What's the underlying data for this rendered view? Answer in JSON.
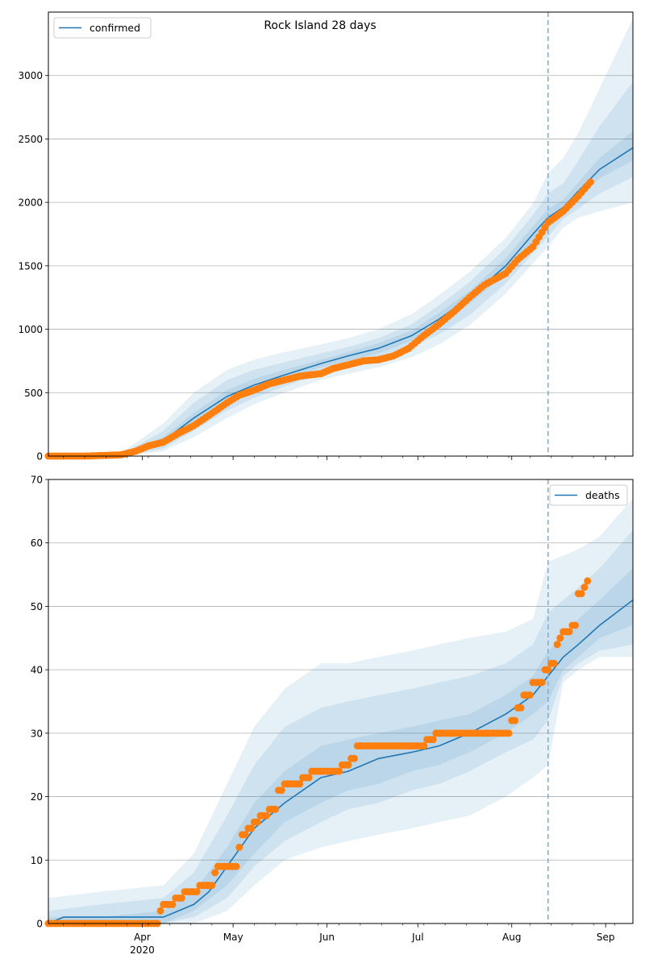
{
  "title": "Rock Island 28 days",
  "colors": {
    "model": "#1f77b4",
    "observed": "#ff7f0e",
    "grid": "#b0b0b0",
    "vline": "#7fb1d6"
  },
  "x_ticks": [
    {
      "label": "Apr",
      "sub": "2020",
      "day": 31
    },
    {
      "label": "May",
      "sub": "",
      "day": 61
    },
    {
      "label": "Jun",
      "sub": "",
      "day": 92
    },
    {
      "label": "Jul",
      "sub": "",
      "day": 122
    },
    {
      "label": "Aug",
      "sub": "",
      "day": 153
    },
    {
      "label": "Sep",
      "sub": "",
      "day": 184
    }
  ],
  "chart_data": [
    {
      "type": "line",
      "legend": "confirmed",
      "legend_position": "top-left",
      "ylim": [
        0,
        3500
      ],
      "yticks": [
        0,
        500,
        1000,
        1500,
        2000,
        2500,
        3000
      ],
      "grid": true,
      "x_range": [
        "2020-03-03",
        "2020-09-12"
      ],
      "forecast_start": "2020-08-15",
      "model": {
        "x": [
          "2020-03-03",
          "2020-03-28",
          "2020-04-10",
          "2020-04-20",
          "2020-05-01",
          "2020-05-10",
          "2020-05-20",
          "2020-06-01",
          "2020-06-10",
          "2020-06-20",
          "2020-07-01",
          "2020-07-10",
          "2020-07-20",
          "2020-08-01",
          "2020-08-10",
          "2020-08-15",
          "2020-08-20",
          "2020-08-25",
          "2020-09-01",
          "2020-09-12"
        ],
        "y": [
          0,
          5,
          120,
          300,
          470,
          560,
          640,
          730,
          790,
          850,
          950,
          1080,
          1250,
          1500,
          1750,
          1880,
          1960,
          2090,
          2260,
          2430
        ]
      },
      "bands": [
        {
          "x": [
            "2020-03-03",
            "2020-03-28",
            "2020-04-10",
            "2020-04-20",
            "2020-05-01",
            "2020-05-10",
            "2020-05-20",
            "2020-06-01",
            "2020-06-10",
            "2020-06-20",
            "2020-07-01",
            "2020-07-10",
            "2020-07-20",
            "2020-08-01",
            "2020-08-10",
            "2020-08-15",
            "2020-08-20",
            "2020-08-25",
            "2020-09-01",
            "2020-09-12"
          ],
          "lower": [
            0,
            0,
            40,
            150,
            300,
            410,
            500,
            600,
            650,
            700,
            780,
            880,
            1030,
            1280,
            1520,
            1650,
            1800,
            1880,
            1930,
            2000
          ],
          "upper": [
            10,
            40,
            260,
            500,
            680,
            760,
            820,
            880,
            930,
            1000,
            1120,
            1270,
            1450,
            1720,
            1990,
            2230,
            2350,
            2550,
            2900,
            3450
          ]
        },
        {
          "x": [
            "2020-03-03",
            "2020-03-28",
            "2020-04-10",
            "2020-04-20",
            "2020-05-01",
            "2020-05-10",
            "2020-05-20",
            "2020-06-01",
            "2020-06-10",
            "2020-06-20",
            "2020-07-01",
            "2020-07-10",
            "2020-07-20",
            "2020-08-01",
            "2020-08-10",
            "2020-08-15",
            "2020-08-20",
            "2020-08-25",
            "2020-09-01",
            "2020-09-12"
          ],
          "lower": [
            0,
            0,
            60,
            200,
            360,
            460,
            550,
            650,
            700,
            760,
            860,
            960,
            1110,
            1360,
            1600,
            1730,
            1870,
            1950,
            2070,
            2200
          ],
          "upper": [
            5,
            25,
            200,
            420,
            600,
            680,
            740,
            810,
            860,
            930,
            1040,
            1190,
            1370,
            1640,
            1900,
            2070,
            2150,
            2330,
            2600,
            2950
          ]
        },
        {
          "x": [
            "2020-03-03",
            "2020-03-28",
            "2020-04-10",
            "2020-04-20",
            "2020-05-01",
            "2020-05-10",
            "2020-05-20",
            "2020-06-01",
            "2020-06-10",
            "2020-06-20",
            "2020-07-01",
            "2020-07-10",
            "2020-07-20",
            "2020-08-01",
            "2020-08-10",
            "2020-08-15",
            "2020-08-20",
            "2020-08-25",
            "2020-09-01",
            "2020-09-12"
          ],
          "lower": [
            0,
            2,
            90,
            260,
            420,
            510,
            600,
            700,
            750,
            810,
            910,
            1030,
            1200,
            1440,
            1690,
            1820,
            1930,
            2040,
            2190,
            2330
          ],
          "upper": [
            3,
            12,
            150,
            340,
            520,
            610,
            680,
            760,
            820,
            890,
            990,
            1130,
            1300,
            1560,
            1810,
            1950,
            2020,
            2160,
            2350,
            2560
          ]
        }
      ],
      "observed": {
        "x": [
          "2020-03-03",
          "2020-03-15",
          "2020-03-27",
          "2020-04-01",
          "2020-04-05",
          "2020-04-10",
          "2020-04-15",
          "2020-04-20",
          "2020-04-25",
          "2020-05-01",
          "2020-05-05",
          "2020-05-10",
          "2020-05-15",
          "2020-05-20",
          "2020-05-25",
          "2020-06-01",
          "2020-06-05",
          "2020-06-10",
          "2020-06-15",
          "2020-06-20",
          "2020-06-25",
          "2020-06-30",
          "2020-07-05",
          "2020-07-10",
          "2020-07-15",
          "2020-07-20",
          "2020-07-25",
          "2020-08-01",
          "2020-08-05",
          "2020-08-10",
          "2020-08-15",
          "2020-08-20",
          "2020-08-25",
          "2020-08-29"
        ],
        "y": [
          0,
          0,
          10,
          40,
          80,
          110,
          180,
          240,
          320,
          420,
          480,
          520,
          570,
          600,
          630,
          650,
          690,
          720,
          750,
          760,
          790,
          850,
          950,
          1040,
          1140,
          1250,
          1350,
          1440,
          1550,
          1650,
          1840,
          1930,
          2050,
          2160
        ]
      }
    },
    {
      "type": "line",
      "legend": "deaths",
      "legend_position": "top-right",
      "ylim": [
        0,
        70
      ],
      "yticks": [
        0,
        10,
        20,
        30,
        40,
        50,
        60,
        70
      ],
      "grid": true,
      "x_range": [
        "2020-03-03",
        "2020-09-12"
      ],
      "forecast_start": "2020-08-15",
      "model": {
        "x": [
          "2020-03-03",
          "2020-03-08",
          "2020-04-10",
          "2020-04-15",
          "2020-04-20",
          "2020-04-25",
          "2020-05-01",
          "2020-05-10",
          "2020-05-20",
          "2020-06-01",
          "2020-06-10",
          "2020-06-20",
          "2020-07-01",
          "2020-07-10",
          "2020-07-20",
          "2020-08-01",
          "2020-08-10",
          "2020-08-15",
          "2020-08-20",
          "2020-08-25",
          "2020-09-01",
          "2020-09-12"
        ],
        "y": [
          0,
          1,
          1,
          2,
          3,
          5,
          9,
          15,
          19,
          23,
          24,
          26,
          27,
          28,
          30,
          33,
          36,
          39,
          42,
          44,
          47,
          51
        ]
      },
      "bands": [
        {
          "x": [
            "2020-03-03",
            "2020-03-20",
            "2020-04-10",
            "2020-04-20",
            "2020-05-01",
            "2020-05-10",
            "2020-05-20",
            "2020-06-01",
            "2020-06-10",
            "2020-06-20",
            "2020-07-01",
            "2020-07-10",
            "2020-07-20",
            "2020-08-01",
            "2020-08-10",
            "2020-08-15",
            "2020-08-20",
            "2020-08-25",
            "2020-09-01",
            "2020-09-12"
          ],
          "lower": [
            0,
            0,
            0,
            0,
            2,
            6,
            10,
            12,
            13,
            14,
            15,
            16,
            17,
            20,
            23,
            25,
            38,
            40,
            42,
            42
          ],
          "upper": [
            4,
            5,
            6,
            11,
            22,
            31,
            37,
            41,
            41,
            42,
            43,
            44,
            45,
            46,
            48,
            57,
            58,
            59,
            61,
            67
          ]
        },
        {
          "x": [
            "2020-03-03",
            "2020-03-20",
            "2020-04-10",
            "2020-04-20",
            "2020-05-01",
            "2020-05-10",
            "2020-05-20",
            "2020-06-01",
            "2020-06-10",
            "2020-06-20",
            "2020-07-01",
            "2020-07-10",
            "2020-07-20",
            "2020-08-01",
            "2020-08-10",
            "2020-08-15",
            "2020-08-20",
            "2020-08-25",
            "2020-09-01",
            "2020-09-12"
          ],
          "lower": [
            0,
            0,
            0,
            1,
            4,
            9,
            13,
            16,
            18,
            19,
            21,
            22,
            24,
            27,
            29,
            32,
            39,
            41,
            43,
            44
          ],
          "upper": [
            2,
            3,
            4,
            8,
            17,
            25,
            31,
            34,
            35,
            36,
            37,
            38,
            39,
            41,
            44,
            49,
            51,
            53,
            56,
            62
          ]
        },
        {
          "x": [
            "2020-03-03",
            "2020-03-20",
            "2020-04-10",
            "2020-04-20",
            "2020-05-01",
            "2020-05-10",
            "2020-05-20",
            "2020-06-01",
            "2020-06-10",
            "2020-06-20",
            "2020-07-01",
            "2020-07-10",
            "2020-07-20",
            "2020-08-01",
            "2020-08-10",
            "2020-08-15",
            "2020-08-20",
            "2020-08-25",
            "2020-09-01",
            "2020-09-12"
          ],
          "lower": [
            0,
            0,
            0,
            2,
            6,
            11,
            16,
            19,
            21,
            22,
            24,
            25,
            27,
            30,
            33,
            35,
            40,
            42,
            45,
            47
          ],
          "upper": [
            1,
            1,
            2,
            5,
            12,
            19,
            24,
            28,
            29,
            30,
            31,
            32,
            33,
            36,
            39,
            43,
            45,
            48,
            51,
            56
          ]
        }
      ],
      "observed": {
        "x": [
          "2020-03-03",
          "2020-04-08",
          "2020-04-09",
          "2020-04-10",
          "2020-04-14",
          "2020-04-17",
          "2020-04-22",
          "2020-04-23",
          "2020-04-27",
          "2020-04-28",
          "2020-05-04",
          "2020-05-05",
          "2020-05-06",
          "2020-05-08",
          "2020-05-10",
          "2020-05-12",
          "2020-05-15",
          "2020-05-18",
          "2020-05-20",
          "2020-05-23",
          "2020-05-26",
          "2020-05-29",
          "2020-06-03",
          "2020-06-08",
          "2020-06-11",
          "2020-06-13",
          "2020-06-27",
          "2020-07-06",
          "2020-07-09",
          "2020-08-01",
          "2020-08-03",
          "2020-08-05",
          "2020-08-07",
          "2020-08-08",
          "2020-08-10",
          "2020-08-11",
          "2020-08-14",
          "2020-08-16",
          "2020-08-18",
          "2020-08-19",
          "2020-08-20",
          "2020-08-23",
          "2020-08-25",
          "2020-08-26",
          "2020-08-27",
          "2020-08-28"
        ],
        "y": [
          0,
          0,
          2,
          3,
          4,
          5,
          6,
          6,
          8,
          9,
          9,
          12,
          14,
          15,
          16,
          17,
          18,
          21,
          22,
          22,
          23,
          24,
          24,
          25,
          26,
          28,
          28,
          29,
          30,
          30,
          32,
          34,
          36,
          36,
          38,
          38,
          40,
          41,
          44,
          45,
          46,
          47,
          52,
          52,
          53,
          54
        ]
      }
    }
  ]
}
